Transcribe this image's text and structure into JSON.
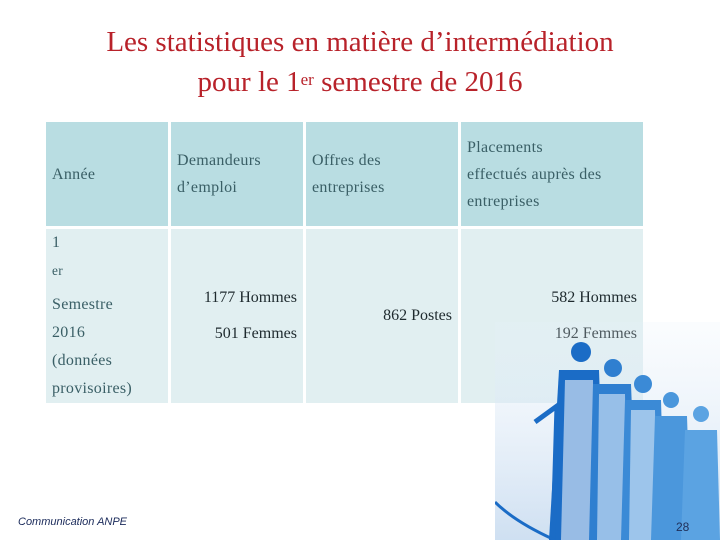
{
  "slide": {
    "title_line1": "Les statistiques en matière d’intermédiation",
    "title_line2_pre": "pour le 1",
    "title_line2_sup": "er",
    "title_line2_post": " semestre de 2016"
  },
  "table": {
    "headers": {
      "annee": "Année",
      "demandeurs_line1": "Demandeurs",
      "demandeurs_line2": "d’emploi",
      "offres_line1": "Offres des",
      "offres_line2": "entreprises",
      "placements_line1": "Placements",
      "placements_line2": "effectués auprès des",
      "placements_line3": "entreprises"
    },
    "row": {
      "period_pre": "1",
      "period_sup": "er",
      "period_post": " Semestre",
      "period_line2": "2016",
      "period_line3": "(données",
      "period_line4": "provisoires)",
      "demandeurs_hommes": "1177 Hommes",
      "demandeurs_femmes": "501 Femmes",
      "offres": "862 Postes",
      "placements_hommes": "582 Hommes",
      "placements_femmes": "192 Femmes"
    }
  },
  "footer": {
    "label": "Communication ANPE",
    "page_number": "28"
  },
  "colors": {
    "title": "#b8222a",
    "header_bg": "#b9dde2",
    "body_bg": "#e1eff1",
    "decor_blue": "#1b6cc6"
  }
}
